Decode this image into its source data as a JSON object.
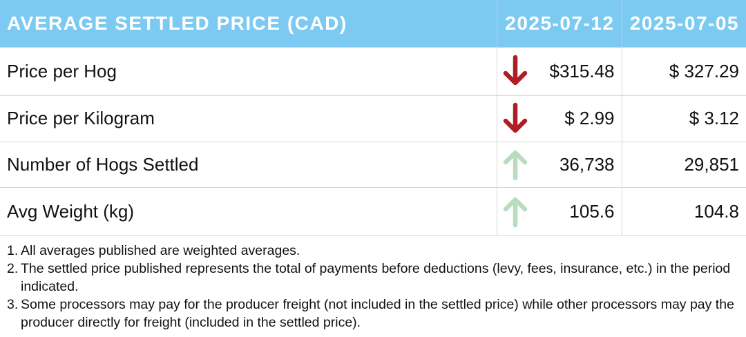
{
  "header": {
    "title": "AVERAGE SETTLED PRICE (CAD)",
    "current_date": "2025-07-12",
    "previous_date": "2025-07-05"
  },
  "rows": [
    {
      "label": "Price per Hog",
      "current": "$315.48",
      "previous": "$ 327.29",
      "trend": "down"
    },
    {
      "label": "Price per Kilogram",
      "current": "$ 2.99",
      "previous": "$ 3.12",
      "trend": "down"
    },
    {
      "label": "Number of Hogs Settled",
      "current": "36,738",
      "previous": "29,851",
      "trend": "up"
    },
    {
      "label": "Avg Weight (kg)",
      "current": "105.6",
      "previous": "104.8",
      "trend": "up"
    }
  ],
  "colors": {
    "header_bg": "#7ccaf2",
    "down_arrow": "#ad1f24",
    "up_arrow": "#b9dcbf"
  },
  "notes": [
    {
      "num": "1.",
      "text": "All averages published are weighted averages."
    },
    {
      "num": "2.",
      "text": "The settled price published represents the total of payments before deductions (levy, fees, insurance, etc.) in the period indicated."
    },
    {
      "num": "3.",
      "text": "Some processors may pay for the producer freight (not included in the settled price) while other processors may pay the producer directly for freight (included in the settled price)."
    }
  ]
}
